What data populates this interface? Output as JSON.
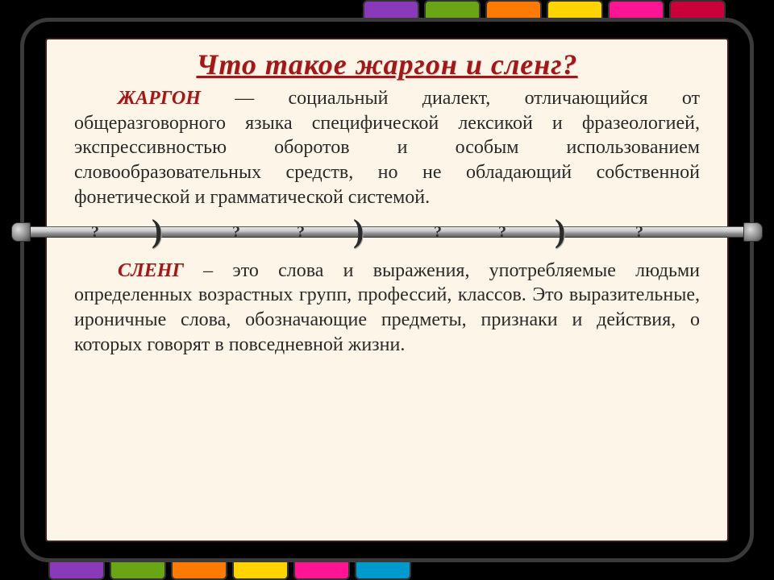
{
  "title": "Что такое жаргон и сленг?",
  "p1_lead": "ЖАРГОН",
  "p1_body": " — социальный диалект, отличающийся от общеразговорного языка специфической лексикой и фразеологией, экспрессивностью оборотов и особым использованием словообразовательных средств, но не обладающий собственной фонетической и грамматической системой.",
  "p2_lead": "СЛЕНГ",
  "p2_body": " – это слова и выражения, употребляемые людьми определенных возрастных групп, профессий, классов. Это выразительные, ироничные слова, обозначающие предметы, признаки и действия, о которых говорят в повседневной жизни.",
  "tab_colors_top": [
    "#8a39b8",
    "#6aa516",
    "#ff7a00",
    "#ffd400",
    "#ff1493",
    "#c9003a"
  ],
  "tab_colors_bottom": [
    "#8a39b8",
    "#6aa516",
    "#ff7a00",
    "#ffd400",
    "#ff1493",
    "#0099cc"
  ],
  "separator": {
    "crescent_positions": [
      130,
      380,
      630
    ],
    "qmark_positions": [
      55,
      230,
      310,
      480,
      560,
      730
    ]
  },
  "colors": {
    "page_bg": "#fdf6e8",
    "accent": "#a01818",
    "text": "#2a2a2a"
  }
}
